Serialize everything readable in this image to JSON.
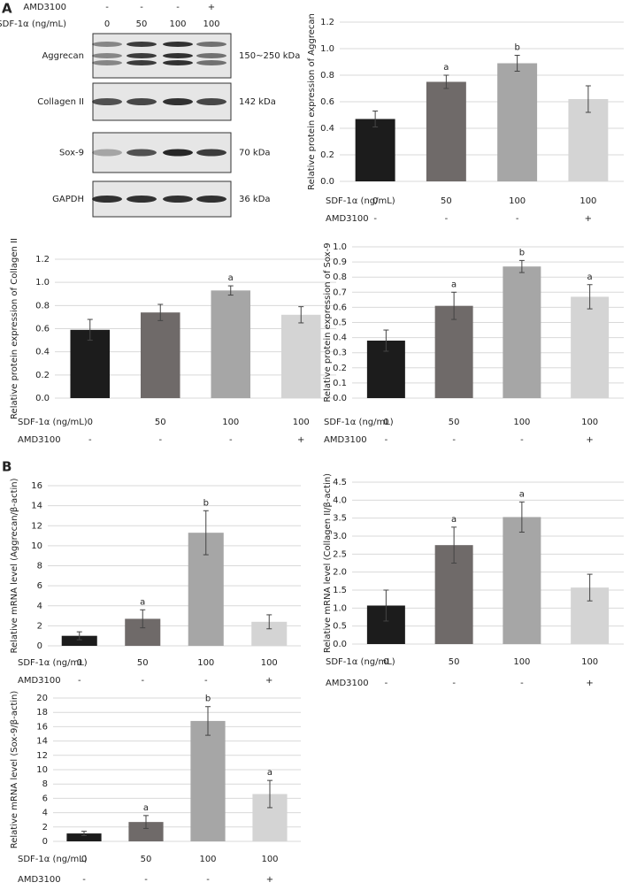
{
  "panels": [
    "A",
    "B"
  ],
  "blot": {
    "header": [
      {
        "label": "AMD3100",
        "cells": [
          "-",
          "-",
          "-",
          "+"
        ]
      },
      {
        "label": "SDF-1α (ng/mL)",
        "cells": [
          "0",
          "50",
          "100",
          "100"
        ]
      }
    ],
    "rows": [
      {
        "label": "Aggrecan",
        "size": "150~250 kDa"
      },
      {
        "label": "Collagen II",
        "size": "142 kDa"
      },
      {
        "label": "Sox-9",
        "size": "70 kDa"
      },
      {
        "label": "GAPDH",
        "size": "36 kDa"
      }
    ]
  },
  "chart_data": [
    {
      "type": "bar",
      "y_label": "Relative protein expression of Aggrecan",
      "categories_label": "SDF-1α (ng/mL)",
      "categories": [
        "0",
        "50",
        "100",
        "100"
      ],
      "categories2_label": "AMD3100",
      "categories2": [
        "-",
        "-",
        "-",
        "+"
      ],
      "values": [
        0.47,
        0.75,
        0.89,
        0.62
      ],
      "errors": [
        0.06,
        0.05,
        0.06,
        0.1
      ],
      "annotations": [
        null,
        "a",
        "b",
        null
      ],
      "colors": [
        "#1c1c1c",
        "#6f6a69",
        "#a6a6a6",
        "#d4d4d4"
      ],
      "ylim": [
        0,
        1.2
      ],
      "yticks": [
        {
          "value": 0,
          "label": "0.0"
        },
        0.2,
        0.4,
        0.6,
        0.8,
        {
          "value": 1,
          "label": "1.0"
        },
        1.2
      ],
      "grid": true
    },
    {
      "type": "bar",
      "y_label": "Relative protein expression of Collagen II",
      "categories_label": "SDF-1α (ng/mL)",
      "categories": [
        "0",
        "50",
        "100",
        "100"
      ],
      "categories2_label": "AMD3100",
      "categories2": [
        "-",
        "-",
        "-",
        "+"
      ],
      "values": [
        0.59,
        0.74,
        0.93,
        0.72
      ],
      "errors": [
        0.09,
        0.07,
        0.04,
        0.07
      ],
      "annotations": [
        null,
        null,
        "a",
        null
      ],
      "colors": [
        "#1c1c1c",
        "#6f6a69",
        "#a6a6a6",
        "#d4d4d4"
      ],
      "ylim": [
        0,
        1.2
      ],
      "yticks": [
        {
          "value": 0,
          "label": "0.0"
        },
        0.2,
        0.4,
        0.6,
        0.8,
        {
          "value": 1,
          "label": "1.0"
        },
        1.2
      ],
      "grid": true
    },
    {
      "type": "bar",
      "y_label": "Relative protein expression of Sox-9",
      "categories_label": "SDF-1α (ng/mL)",
      "categories": [
        "0",
        "50",
        "100",
        "100"
      ],
      "categories2_label": "AMD3100",
      "categories2": [
        "-",
        "-",
        "-",
        "+"
      ],
      "values": [
        0.38,
        0.61,
        0.87,
        0.67
      ],
      "errors": [
        0.07,
        0.09,
        0.04,
        0.08
      ],
      "annotations": [
        null,
        "a",
        "b",
        "a"
      ],
      "colors": [
        "#1c1c1c",
        "#6f6a69",
        "#a6a6a6",
        "#d4d4d4"
      ],
      "ylim": [
        0,
        1
      ],
      "yticks": [
        {
          "value": 0,
          "label": "0.0"
        },
        0.1,
        0.2,
        0.3,
        0.4,
        0.5,
        0.6,
        0.7,
        0.8,
        0.9,
        {
          "value": 1,
          "label": "1.0"
        }
      ],
      "grid": true
    },
    {
      "type": "bar",
      "y_label": "Relative mRNA level (Aggrecan/β-actin)",
      "categories_label": "SDF-1α (ng/mL)",
      "categories": [
        "0",
        "50",
        "100",
        "100"
      ],
      "categories2_label": "AMD3100",
      "categories2": [
        "-",
        "-",
        "-",
        "+"
      ],
      "values": [
        1.0,
        2.7,
        11.3,
        2.4
      ],
      "errors": [
        0.4,
        0.9,
        2.2,
        0.7
      ],
      "annotations": [
        null,
        "a",
        "b",
        null
      ],
      "colors": [
        "#1c1c1c",
        "#6f6a69",
        "#a6a6a6",
        "#d4d4d4"
      ],
      "ylim": [
        0,
        16
      ],
      "yticks": [
        0,
        2,
        4,
        6,
        8,
        10,
        12,
        14,
        16
      ],
      "grid": true
    },
    {
      "type": "bar",
      "y_label": "Relative mRNA level (Collagen II/β-actin)",
      "categories_label": "SDF-1α (ng/mL)",
      "categories": [
        "0",
        "50",
        "100",
        "100"
      ],
      "categories2_label": "AMD3100",
      "categories2": [
        "-",
        "-",
        "-",
        "+"
      ],
      "values": [
        1.07,
        2.75,
        3.53,
        1.57
      ],
      "errors": [
        0.43,
        0.5,
        0.42,
        0.37
      ],
      "annotations": [
        null,
        "a",
        "a",
        null
      ],
      "colors": [
        "#1c1c1c",
        "#6f6a69",
        "#a6a6a6",
        "#d4d4d4"
      ],
      "ylim": [
        0,
        4.5
      ],
      "yticks": [
        {
          "value": 0,
          "label": "0.0"
        },
        0.5,
        {
          "value": 1,
          "label": "1.0"
        },
        1.5,
        {
          "value": 2,
          "label": "2.0"
        },
        2.5,
        {
          "value": 3,
          "label": "3.0"
        },
        3.5,
        {
          "value": 4,
          "label": "4.0"
        },
        4.5
      ],
      "grid": true
    },
    {
      "type": "bar",
      "y_label": "Relative mRNA level (Sox-9/β-actin)",
      "categories_label": "SDF-1α (ng/mL)",
      "categories": [
        "0",
        "50",
        "100",
        "100"
      ],
      "categories2_label": "AMD3100",
      "categories2": [
        "-",
        "-",
        "-",
        "+"
      ],
      "values": [
        1.1,
        2.7,
        16.8,
        6.6
      ],
      "errors": [
        0.3,
        0.9,
        2.0,
        1.9
      ],
      "annotations": [
        null,
        "a",
        "b",
        "a"
      ],
      "colors": [
        "#1c1c1c",
        "#6f6a69",
        "#a6a6a6",
        "#d4d4d4"
      ],
      "ylim": [
        0,
        20
      ],
      "yticks": [
        0,
        2,
        4,
        6,
        8,
        10,
        12,
        14,
        16,
        18,
        20
      ],
      "grid": true
    }
  ]
}
